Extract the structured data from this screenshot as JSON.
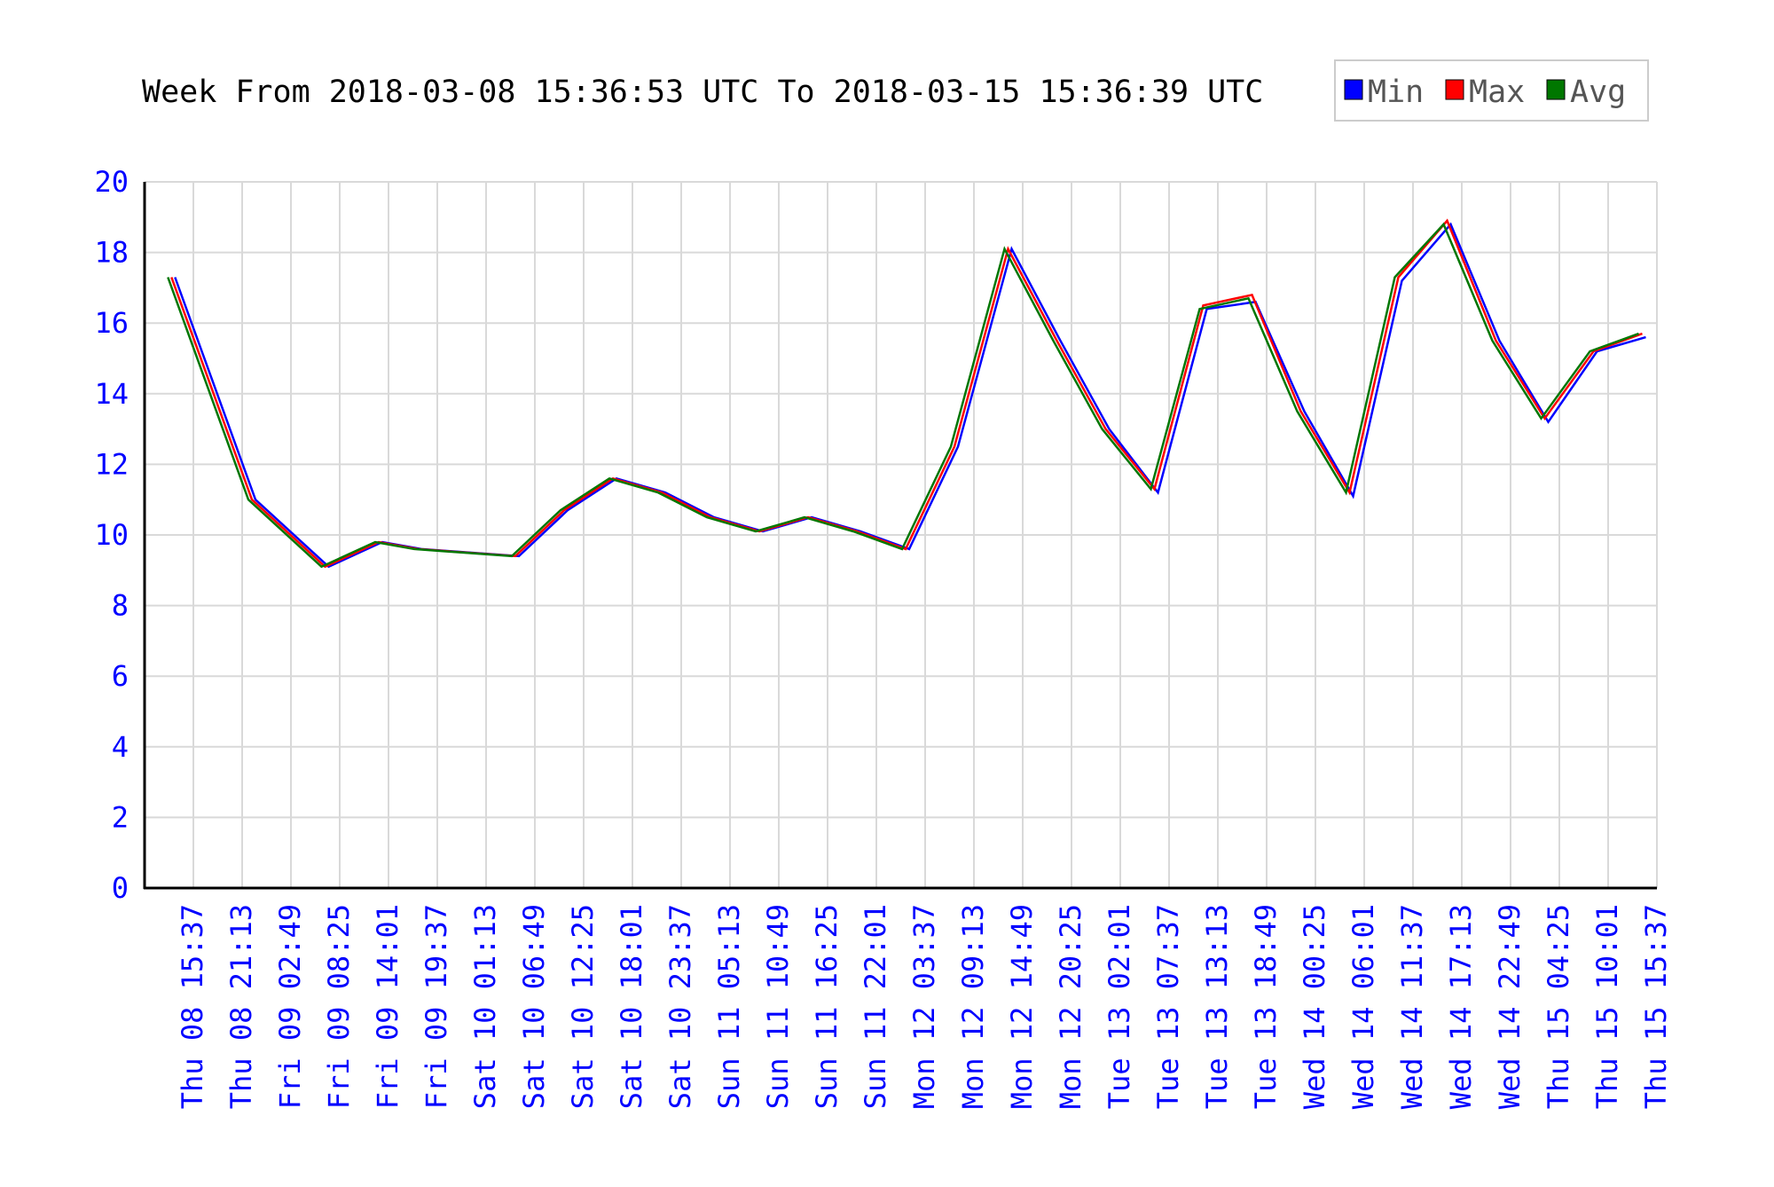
{
  "chart_data": {
    "type": "line",
    "title": "Week From 2018-03-08 15:36:53 UTC To 2018-03-15 15:36:39 UTC",
    "xlabel": "",
    "ylabel": "",
    "ylim": [
      0,
      20
    ],
    "yticks": [
      "0",
      "2",
      "4",
      "6",
      "8",
      "10",
      "12",
      "14",
      "16",
      "18",
      "20"
    ],
    "grid": true,
    "legend_position": "top-right",
    "categories": [
      "Thu 08 15:37",
      "Thu 08 21:13",
      "Fri 09 02:49",
      "Fri 09 08:25",
      "Fri 09 14:01",
      "Fri 09 19:37",
      "Sat 10 01:13",
      "Sat 10 06:49",
      "Sat 10 12:25",
      "Sat 10 18:01",
      "Sat 10 23:37",
      "Sun 11 05:13",
      "Sun 11 10:49",
      "Sun 11 16:25",
      "Sun 11 22:01",
      "Mon 12 03:37",
      "Mon 12 09:13",
      "Mon 12 14:49",
      "Mon 12 20:25",
      "Tue 13 02:01",
      "Tue 13 07:37",
      "Tue 13 13:13",
      "Tue 13 18:49",
      "Wed 14 00:25",
      "Wed 14 06:01",
      "Wed 14 11:37",
      "Wed 14 17:13",
      "Wed 14 22:49",
      "Thu 15 04:25",
      "Thu 15 10:01",
      "Thu 15 15:37"
    ],
    "series": [
      {
        "name": "Min",
        "color": "#0000ff",
        "points": [
          [
            0.55,
            17.3
          ],
          [
            2.2,
            11.0
          ],
          [
            3.7,
            9.1
          ],
          [
            4.8,
            9.8
          ],
          [
            5.6,
            9.6
          ],
          [
            6.6,
            9.5
          ],
          [
            7.6,
            9.4
          ],
          [
            8.6,
            10.7
          ],
          [
            9.6,
            11.6
          ],
          [
            10.6,
            11.2
          ],
          [
            11.6,
            10.5
          ],
          [
            12.6,
            10.1
          ],
          [
            13.6,
            10.5
          ],
          [
            14.6,
            10.1
          ],
          [
            15.6,
            9.6
          ],
          [
            16.6,
            12.5
          ],
          [
            17.7,
            18.1
          ],
          [
            18.7,
            15.5
          ],
          [
            19.7,
            13.0
          ],
          [
            20.7,
            11.2
          ],
          [
            21.7,
            16.4
          ],
          [
            22.7,
            16.6
          ],
          [
            23.7,
            13.5
          ],
          [
            24.7,
            11.1
          ],
          [
            25.7,
            17.2
          ],
          [
            26.7,
            18.8
          ],
          [
            27.7,
            15.5
          ],
          [
            28.7,
            13.2
          ],
          [
            29.7,
            15.2
          ],
          [
            30.7,
            15.6
          ]
        ]
      },
      {
        "name": "Max",
        "color": "#ff0000",
        "points": [
          [
            0.55,
            17.3
          ],
          [
            2.2,
            11.0
          ],
          [
            3.7,
            9.1
          ],
          [
            4.8,
            9.8
          ],
          [
            5.6,
            9.6
          ],
          [
            6.6,
            9.5
          ],
          [
            7.6,
            9.4
          ],
          [
            8.6,
            10.7
          ],
          [
            9.6,
            11.6
          ],
          [
            10.6,
            11.2
          ],
          [
            11.6,
            10.5
          ],
          [
            12.6,
            10.1
          ],
          [
            13.6,
            10.5
          ],
          [
            14.6,
            10.1
          ],
          [
            15.6,
            9.6
          ],
          [
            16.6,
            12.5
          ],
          [
            17.7,
            18.1
          ],
          [
            18.7,
            15.5
          ],
          [
            19.7,
            13.0
          ],
          [
            20.7,
            11.3
          ],
          [
            21.7,
            16.5
          ],
          [
            22.7,
            16.8
          ],
          [
            23.7,
            13.5
          ],
          [
            24.7,
            11.2
          ],
          [
            25.7,
            17.3
          ],
          [
            26.7,
            18.9
          ],
          [
            27.7,
            15.5
          ],
          [
            28.7,
            13.3
          ],
          [
            29.7,
            15.2
          ],
          [
            30.7,
            15.7
          ]
        ]
      },
      {
        "name": "Avg",
        "color": "#007700",
        "points": [
          [
            0.55,
            17.3
          ],
          [
            2.2,
            11.0
          ],
          [
            3.7,
            9.1
          ],
          [
            4.8,
            9.8
          ],
          [
            5.6,
            9.6
          ],
          [
            6.6,
            9.5
          ],
          [
            7.6,
            9.4
          ],
          [
            8.6,
            10.7
          ],
          [
            9.6,
            11.6
          ],
          [
            10.6,
            11.2
          ],
          [
            11.6,
            10.5
          ],
          [
            12.6,
            10.1
          ],
          [
            13.6,
            10.5
          ],
          [
            14.6,
            10.1
          ],
          [
            15.6,
            9.6
          ],
          [
            16.6,
            12.5
          ],
          [
            17.7,
            18.1
          ],
          [
            18.7,
            15.5
          ],
          [
            19.7,
            13.0
          ],
          [
            20.7,
            11.3
          ],
          [
            21.7,
            16.4
          ],
          [
            22.7,
            16.7
          ],
          [
            23.7,
            13.5
          ],
          [
            24.7,
            11.2
          ],
          [
            25.7,
            17.3
          ],
          [
            26.7,
            18.8
          ],
          [
            27.7,
            15.5
          ],
          [
            28.7,
            13.3
          ],
          [
            29.7,
            15.2
          ],
          [
            30.7,
            15.7
          ]
        ]
      }
    ]
  }
}
